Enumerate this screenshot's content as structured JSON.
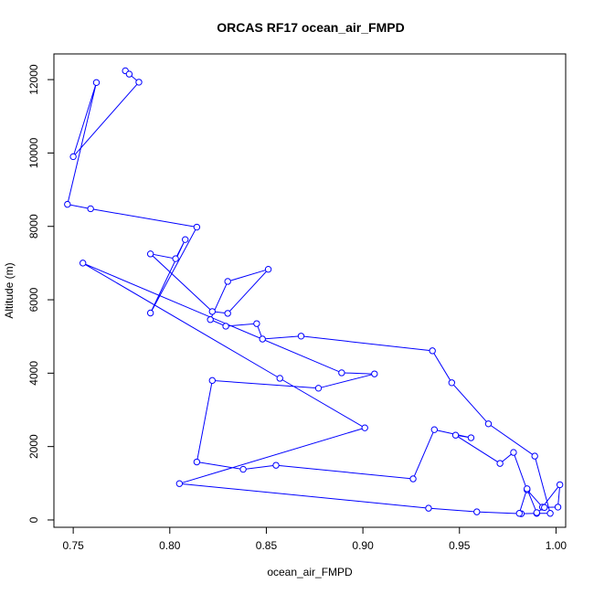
{
  "chart_data": {
    "type": "line",
    "title": "ORCAS RF17 ocean_air_FMPD",
    "xlabel": "ocean_air_FMPD",
    "ylabel": "Altitude (m)",
    "xlim": [
      0.74,
      1.005
    ],
    "ylim": [
      -200,
      12700
    ],
    "xticks": [
      "0.75",
      "0.80",
      "0.85",
      "0.90",
      "0.95",
      "1.00"
    ],
    "yticks": [
      "0",
      "2000",
      "4000",
      "6000",
      "8000",
      "10000",
      "12000"
    ],
    "grid": false,
    "marker": "open-circle",
    "color": "#0000ff",
    "series": [
      {
        "x": [
          0.777,
          0.779,
          0.784,
          0.75,
          0.762,
          0.747,
          0.759,
          0.814,
          0.79,
          0.808,
          0.803,
          0.79,
          0.822,
          0.83,
          0.851,
          0.83,
          0.821,
          0.829,
          0.845,
          0.848,
          0.868,
          0.936,
          0.946,
          0.965,
          0.989,
          0.997,
          0.99,
          0.982,
          0.959,
          0.934,
          0.805,
          0.901,
          0.857,
          0.755,
          0.889,
          0.906,
          0.877,
          0.822,
          0.814,
          0.838,
          0.855,
          0.926,
          0.937,
          0.956,
          0.948,
          0.971,
          0.978,
          0.985,
          0.993,
          1.002,
          1.001,
          0.994,
          0.99,
          0.985,
          0.981
        ],
        "y": [
          12240,
          12150,
          11930,
          9900,
          11920,
          8600,
          8480,
          7980,
          5640,
          7640,
          7120,
          7250,
          5680,
          5630,
          6830,
          6500,
          5460,
          5280,
          5350,
          4930,
          5010,
          4610,
          3740,
          2620,
          1740,
          180,
          180,
          170,
          220,
          320,
          990,
          2510,
          3860,
          7000,
          4010,
          3980,
          3590,
          3800,
          1580,
          1380,
          1490,
          1120,
          2460,
          2240,
          2310,
          1540,
          1840,
          820,
          350,
          960,
          350,
          340,
          200,
          850,
          180
        ]
      }
    ]
  }
}
